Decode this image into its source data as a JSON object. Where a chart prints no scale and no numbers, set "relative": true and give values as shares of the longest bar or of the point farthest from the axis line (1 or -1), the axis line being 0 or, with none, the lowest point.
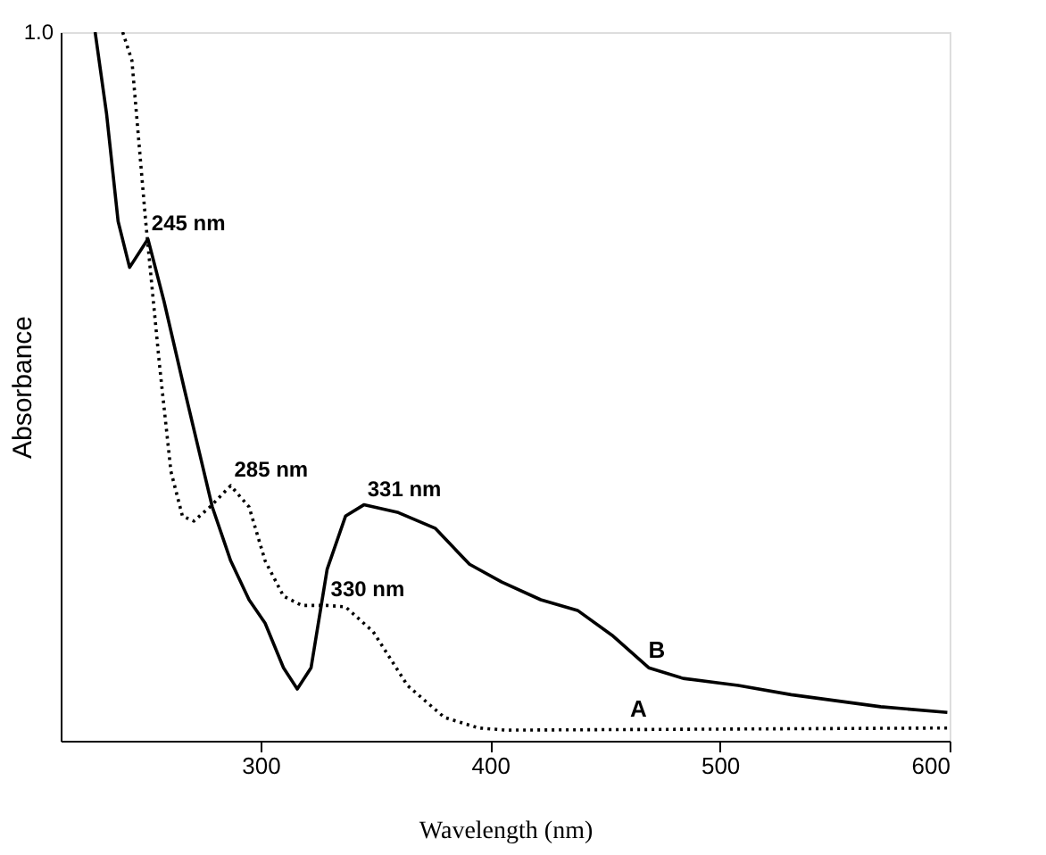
{
  "chart_data": {
    "type": "line",
    "xlabel": "Wavelength (nm)",
    "ylabel": "Absorbance",
    "xlim": [
      213,
      600
    ],
    "xticks": [
      300,
      400,
      500,
      600
    ],
    "relative": true,
    "grid": false,
    "marker": "none",
    "series": [
      {
        "name": "A",
        "color": "#000000",
        "line_style": "dotted",
        "x": [
          240,
          244,
          250,
          256,
          261,
          266,
          271,
          278,
          287,
          295,
          302,
          310,
          318,
          329,
          337,
          349,
          364,
          380,
          395,
          407,
          599
        ],
        "values": [
          1.0,
          0.96,
          0.733,
          0.531,
          0.38,
          0.317,
          0.31,
          0.33,
          0.36,
          0.33,
          0.254,
          0.204,
          0.191,
          0.191,
          0.189,
          0.154,
          0.078,
          0.033,
          0.018,
          0.015,
          0.018
        ]
      },
      {
        "name": "B",
        "color": "#000000",
        "line_style": "solid",
        "x": [
          228,
          233,
          238,
          243,
          251,
          258,
          267,
          279,
          287,
          295,
          302,
          310,
          316,
          322,
          329,
          337,
          345,
          360,
          376,
          391,
          405,
          422,
          438,
          453,
          469,
          484,
          508,
          531,
          570,
          599
        ],
        "values": [
          1.0,
          0.884,
          0.733,
          0.668,
          0.708,
          0.62,
          0.494,
          0.33,
          0.254,
          0.199,
          0.166,
          0.103,
          0.073,
          0.103,
          0.242,
          0.317,
          0.333,
          0.322,
          0.3,
          0.249,
          0.224,
          0.199,
          0.184,
          0.149,
          0.103,
          0.088,
          0.078,
          0.065,
          0.048,
          0.04
        ]
      }
    ],
    "annotations": [
      "1.0",
      {
        "text": "245 nm",
        "x": 251,
        "y": 0.708
      },
      {
        "text": "285 nm",
        "x": 287,
        "y": 0.36
      },
      {
        "text": "331 nm",
        "x": 345,
        "y": 0.333
      },
      {
        "text": "330 nm",
        "x": 329,
        "y": 0.191
      }
    ]
  }
}
